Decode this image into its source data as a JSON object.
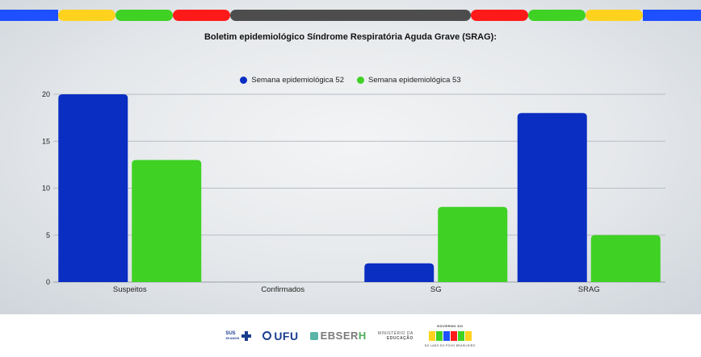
{
  "colors": {
    "series_52": "#0a2ec2",
    "series_53": "#3fd124",
    "grid": "#b7bdc3",
    "bar_strip": [
      "#1e50ff",
      "#ffd21e",
      "#3fd124",
      "#ff1a1a",
      "#4d4d4d",
      "#ff1a1a",
      "#3fd124",
      "#ffd21e",
      "#1e50ff"
    ]
  },
  "chart_data": {
    "type": "bar",
    "title": "Boletim epidemiológico Síndrome Respiratória Aguda Grave (SRAG):",
    "categories": [
      "Suspeitos",
      "Confirmados",
      "SG",
      "SRAG"
    ],
    "series": [
      {
        "name": "Semana epidemiológica 52",
        "values": [
          20,
          0,
          2,
          18
        ]
      },
      {
        "name": "Semana epidemiológica 53",
        "values": [
          13,
          0,
          8,
          5
        ]
      }
    ],
    "yticks": [
      "0",
      "5",
      "10",
      "15",
      "20"
    ],
    "ylim": [
      0,
      20
    ],
    "grid": true,
    "legend": "top-center",
    "xlabel": "",
    "ylabel": ""
  },
  "footer": {
    "sus_label": "SUS",
    "sus_sub": "35 ANOS",
    "ufu_label": "UFU",
    "ebserh_label": "EBSER",
    "ebserh_h": "H",
    "mec_line1": "MINISTÉRIO DA",
    "mec_line2": "EDUCAÇÃO",
    "gov_top": "GOVERNO DO",
    "gov_main": "BRASIL",
    "gov_bottom": "DO LADO DO POVO BRASILEIRO",
    "gov_colors": [
      "#ffd21e",
      "#3fd124",
      "#1e50ff",
      "#ff1a1a",
      "#3fd124",
      "#ffd21e"
    ]
  }
}
